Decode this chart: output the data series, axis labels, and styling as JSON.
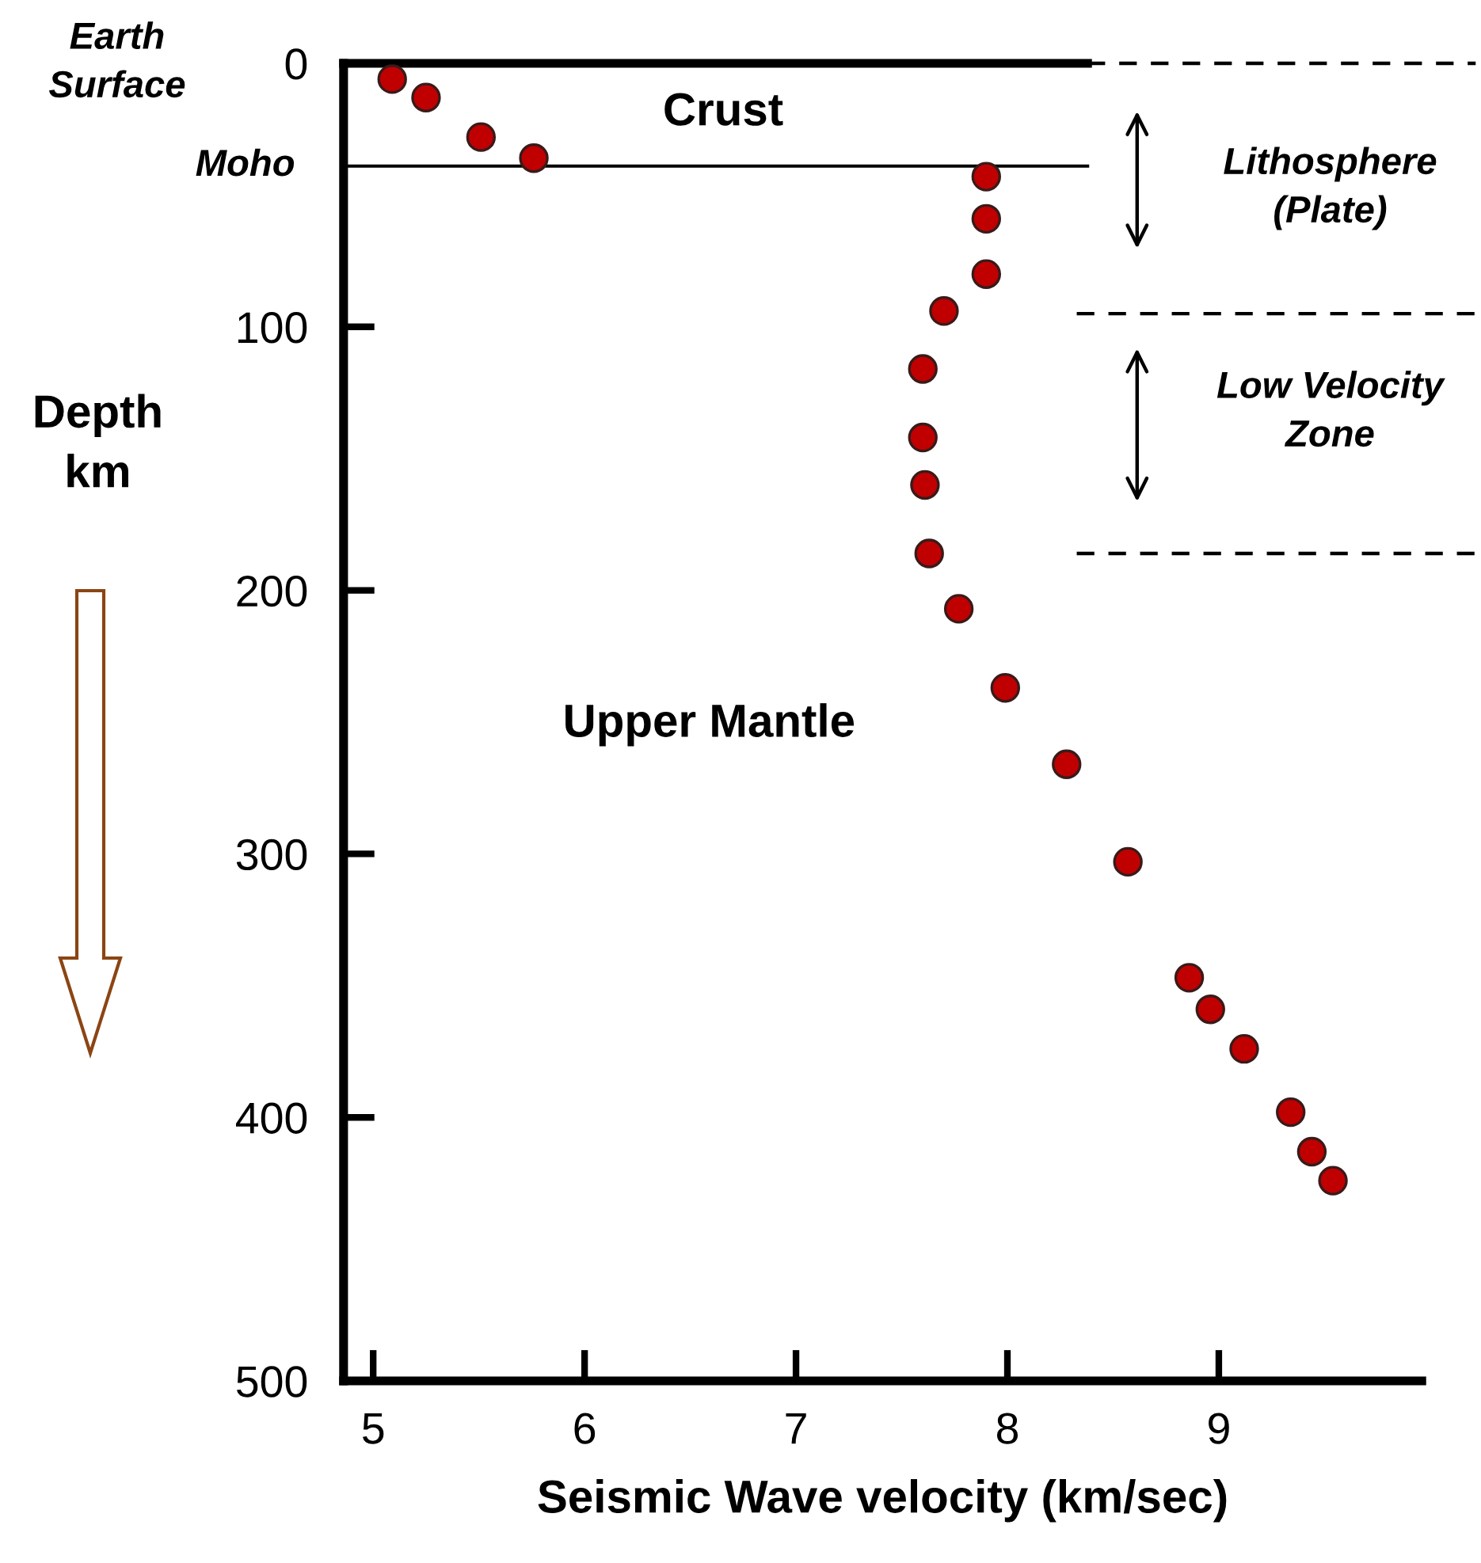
{
  "chart_data": {
    "type": "scatter",
    "xlabel": "Seismic Wave velocity (km/sec)",
    "ylabel": "Depth\nkm",
    "x": [
      5.09,
      5.25,
      5.51,
      5.76,
      7.9,
      7.9,
      7.9,
      7.7,
      7.6,
      7.6,
      7.61,
      7.63,
      7.77,
      7.99,
      8.28,
      8.57,
      8.86,
      8.96,
      9.12,
      9.34,
      9.44,
      9.54
    ],
    "series": [
      {
        "color": "#c00000",
        "values": [
          6,
          13,
          28,
          36,
          43,
          59,
          80,
          94,
          116,
          142,
          160,
          186,
          207,
          237,
          266,
          303,
          347,
          359,
          374,
          398,
          413,
          424
        ]
      }
    ],
    "xlim": [
      4.86,
      9.96
    ],
    "xticks": [
      5,
      6,
      7,
      8,
      9
    ],
    "ylim": [
      500,
      0
    ],
    "yticks": [
      0,
      100,
      200,
      300,
      400,
      500
    ],
    "marker": "circle",
    "grid": false,
    "legend": false,
    "ref_lines": [
      {
        "axis": "y",
        "value": 0,
        "line_style": "dashed"
      },
      {
        "axis": "y",
        "value": 0,
        "line_style": "solid"
      },
      {
        "axis": "y",
        "value": 39,
        "label": "Moho",
        "line_style": "solid"
      },
      {
        "axis": "y",
        "value": 95,
        "line_style": "dashed"
      },
      {
        "axis": "y",
        "value": 186,
        "line_style": "dashed"
      }
    ],
    "annotations": [
      "Earth\nSurface",
      "Crust",
      "Upper Mantle",
      "Lithosphere\n(Plate)",
      "Low Velocity\nZone"
    ]
  }
}
